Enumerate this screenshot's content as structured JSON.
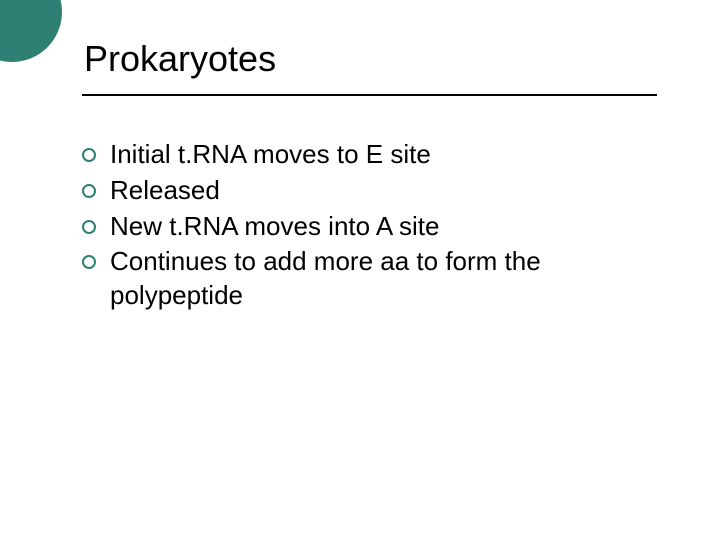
{
  "slide": {
    "title": "Prokaryotes",
    "bullets": [
      "Initial t.RNA moves to E site",
      "Released",
      "New t.RNA moves into A site",
      "Continues to add more aa to form the polypeptide"
    ],
    "accent_color": "#2f8074",
    "text_color": "#000000",
    "background_color": "#ffffff",
    "title_fontsize": 36,
    "body_fontsize": 26,
    "underline_color": "#000000"
  }
}
